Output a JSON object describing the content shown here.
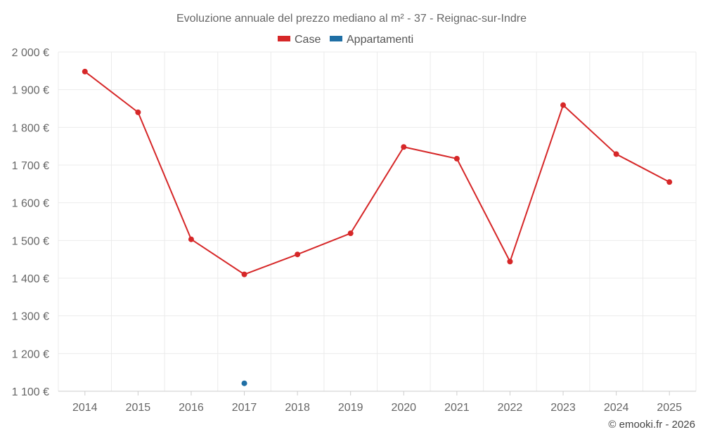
{
  "chart_data": {
    "type": "line",
    "title": "Evoluzione annuale del prezzo mediano al m² - 37 - Reignac-sur-Indre",
    "categories": [
      "2014",
      "2015",
      "2016",
      "2017",
      "2018",
      "2019",
      "2020",
      "2021",
      "2022",
      "2023",
      "2024",
      "2025"
    ],
    "ylim": [
      1100,
      2000
    ],
    "yticks": [
      1100,
      1200,
      1300,
      1400,
      1500,
      1600,
      1700,
      1800,
      1900,
      2000
    ],
    "ytick_labels": [
      "1 100 €",
      "1 200 €",
      "1 300 €",
      "1 400 €",
      "1 500 €",
      "1 600 €",
      "1 700 €",
      "1 800 €",
      "1 900 €",
      "2 000 €"
    ],
    "grid": true,
    "legend_position": "top-center",
    "series": [
      {
        "name": "Case",
        "color": "#d62728",
        "values": [
          1948,
          1840,
          1503,
          1410,
          1463,
          1519,
          1748,
          1717,
          1444,
          1859,
          1729,
          1655
        ]
      },
      {
        "name": "Appartamenti",
        "color": "#1f6fa5",
        "values": [
          null,
          null,
          null,
          1121,
          null,
          null,
          null,
          null,
          null,
          null,
          null,
          null
        ]
      }
    ]
  },
  "credit": "© emooki.fr - 2026"
}
